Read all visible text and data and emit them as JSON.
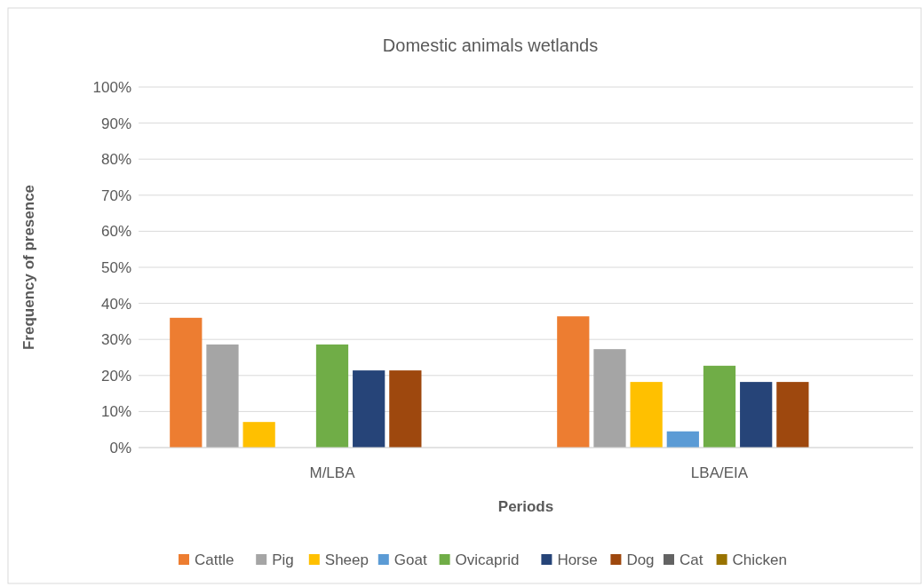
{
  "chart_data": {
    "type": "bar",
    "title": "Domestic animals wetlands",
    "xlabel": "Periods",
    "ylabel": "Frequency of presence",
    "categories": [
      "M/LBA",
      "LBA/EIA"
    ],
    "series": [
      {
        "name": "Cattle",
        "color": "#ed7d31",
        "values": [
          36,
          36.4
        ]
      },
      {
        "name": "Pig",
        "color": "#a5a5a5",
        "values": [
          28.6,
          27.3
        ]
      },
      {
        "name": "Sheep",
        "color": "#ffc000",
        "values": [
          7.1,
          18.2
        ]
      },
      {
        "name": "Goat",
        "color": "#5b9bd5",
        "values": [
          0,
          4.5
        ]
      },
      {
        "name": "Ovicaprid",
        "color": "#70ad47",
        "values": [
          28.6,
          22.7
        ]
      },
      {
        "name": "Horse",
        "color": "#264478",
        "values": [
          21.4,
          18.2
        ]
      },
      {
        "name": "Dog",
        "color": "#9e480e",
        "values": [
          21.4,
          18.2
        ]
      },
      {
        "name": "Cat",
        "color": "#636363",
        "values": [
          0,
          0
        ]
      },
      {
        "name": "Chicken",
        "color": "#997300",
        "values": [
          0,
          0
        ]
      }
    ],
    "ylim": [
      0,
      100
    ],
    "yticks": [
      {
        "value": 0,
        "label": "0%"
      },
      {
        "value": 10,
        "label": "10%"
      },
      {
        "value": 20,
        "label": "20%"
      },
      {
        "value": 30,
        "label": "30%"
      },
      {
        "value": 40,
        "label": "40%"
      },
      {
        "value": 50,
        "label": "50%"
      },
      {
        "value": 60,
        "label": "60%"
      },
      {
        "value": 70,
        "label": "70%"
      },
      {
        "value": 80,
        "label": "80%"
      },
      {
        "value": 90,
        "label": "90%"
      },
      {
        "value": 100,
        "label": "100%"
      }
    ],
    "grid": "y",
    "legend": "bottom"
  }
}
